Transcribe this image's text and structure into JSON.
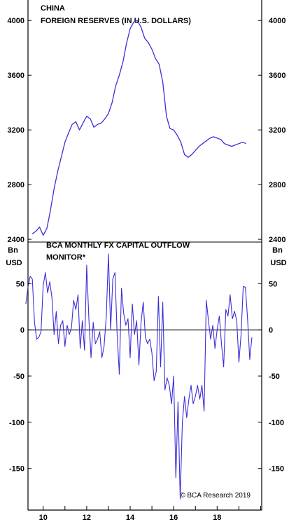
{
  "chart_data": [
    {
      "type": "line",
      "title": "CHINA",
      "subtitle": "FOREIGN RESERVES (IN U.S. DOLLARS)",
      "ylim": [
        2380,
        4150
      ],
      "yticks": [
        "4000",
        "3600",
        "3200",
        "2800",
        "2400"
      ],
      "grid": false,
      "series": [
        {
          "name": "",
          "color": "#3b2fd8",
          "points": [
            [
              2009.5,
              2440
            ],
            [
              2009.67,
              2460
            ],
            [
              2009.83,
              2490
            ],
            [
              2010.0,
              2430
            ],
            [
              2010.17,
              2480
            ],
            [
              2010.33,
              2610
            ],
            [
              2010.5,
              2770
            ],
            [
              2010.67,
              2900
            ],
            [
              2010.83,
              3000
            ],
            [
              2011.0,
              3110
            ],
            [
              2011.17,
              3180
            ],
            [
              2011.33,
              3240
            ],
            [
              2011.5,
              3260
            ],
            [
              2011.67,
              3200
            ],
            [
              2011.83,
              3250
            ],
            [
              2012.0,
              3300
            ],
            [
              2012.17,
              3280
            ],
            [
              2012.33,
              3220
            ],
            [
              2012.5,
              3240
            ],
            [
              2012.67,
              3250
            ],
            [
              2012.83,
              3280
            ],
            [
              2013.0,
              3320
            ],
            [
              2013.17,
              3400
            ],
            [
              2013.33,
              3520
            ],
            [
              2013.5,
              3600
            ],
            [
              2013.67,
              3700
            ],
            [
              2013.83,
              3830
            ],
            [
              2014.0,
              3940
            ],
            [
              2014.17,
              3990
            ],
            [
              2014.33,
              4000
            ],
            [
              2014.5,
              3950
            ],
            [
              2014.67,
              3870
            ],
            [
              2014.83,
              3840
            ],
            [
              2015.0,
              3790
            ],
            [
              2015.17,
              3720
            ],
            [
              2015.33,
              3680
            ],
            [
              2015.5,
              3550
            ],
            [
              2015.67,
              3300
            ],
            [
              2015.83,
              3210
            ],
            [
              2016.0,
              3200
            ],
            [
              2016.17,
              3160
            ],
            [
              2016.33,
              3110
            ],
            [
              2016.5,
              3020
            ],
            [
              2016.67,
              3000
            ],
            [
              2016.83,
              3020
            ],
            [
              2017.0,
              3050
            ],
            [
              2017.17,
              3080
            ],
            [
              2017.33,
              3100
            ],
            [
              2017.5,
              3120
            ],
            [
              2017.67,
              3140
            ],
            [
              2017.83,
              3150
            ],
            [
              2018.0,
              3140
            ],
            [
              2018.17,
              3130
            ],
            [
              2018.33,
              3100
            ],
            [
              2018.5,
              3090
            ],
            [
              2018.67,
              3080
            ],
            [
              2018.83,
              3090
            ],
            [
              2019.0,
              3100
            ],
            [
              2019.17,
              3110
            ],
            [
              2019.33,
              3100
            ]
          ]
        }
      ]
    },
    {
      "type": "line",
      "title": "BCA MONTHLY FX CAPITAL OUTFLOW MONITOR*",
      "ylabel_left": "Bn USD",
      "ylabel_right": "Bn USD",
      "ylim": [
        -195,
        95
      ],
      "yticks": [
        "50",
        "0",
        "-50",
        "-100",
        "-150"
      ],
      "zero_line": true,
      "grid": false,
      "annotation": "© BCA Research 2019",
      "series": [
        {
          "name": "",
          "color": "#3b2fd8",
          "points": [
            [
              2009.2,
              28
            ],
            [
              2009.3,
              46
            ],
            [
              2009.4,
              58
            ],
            [
              2009.5,
              55
            ],
            [
              2009.6,
              8
            ],
            [
              2009.7,
              -10
            ],
            [
              2009.8,
              -8
            ],
            [
              2009.9,
              -2
            ],
            [
              2010.0,
              48
            ],
            [
              2010.1,
              62
            ],
            [
              2010.2,
              40
            ],
            [
              2010.3,
              52
            ],
            [
              2010.4,
              35
            ],
            [
              2010.5,
              -5
            ],
            [
              2010.6,
              20
            ],
            [
              2010.7,
              -15
            ],
            [
              2010.8,
              5
            ],
            [
              2010.9,
              10
            ],
            [
              2011.0,
              -18
            ],
            [
              2011.1,
              5
            ],
            [
              2011.2,
              -5
            ],
            [
              2011.3,
              2
            ],
            [
              2011.4,
              32
            ],
            [
              2011.5,
              22
            ],
            [
              2011.6,
              38
            ],
            [
              2011.7,
              -20
            ],
            [
              2011.8,
              10
            ],
            [
              2011.9,
              -22
            ],
            [
              2012.0,
              70
            ],
            [
              2012.1,
              12
            ],
            [
              2012.2,
              -30
            ],
            [
              2012.3,
              8
            ],
            [
              2012.4,
              -15
            ],
            [
              2012.5,
              -10
            ],
            [
              2012.6,
              -2
            ],
            [
              2012.7,
              -30
            ],
            [
              2012.8,
              -18
            ],
            [
              2012.9,
              15
            ],
            [
              2013.0,
              82
            ],
            [
              2013.1,
              0
            ],
            [
              2013.2,
              55
            ],
            [
              2013.3,
              62
            ],
            [
              2013.4,
              -5
            ],
            [
              2013.5,
              -48
            ],
            [
              2013.6,
              45
            ],
            [
              2013.7,
              18
            ],
            [
              2013.8,
              5
            ],
            [
              2013.9,
              12
            ],
            [
              2014.0,
              -30
            ],
            [
              2014.1,
              28
            ],
            [
              2014.2,
              -5
            ],
            [
              2014.3,
              10
            ],
            [
              2014.4,
              -38
            ],
            [
              2014.5,
              8
            ],
            [
              2014.6,
              30
            ],
            [
              2014.7,
              -8
            ],
            [
              2014.8,
              -15
            ],
            [
              2014.9,
              -10
            ],
            [
              2015.0,
              -25
            ],
            [
              2015.1,
              -55
            ],
            [
              2015.2,
              -45
            ],
            [
              2015.3,
              36
            ],
            [
              2015.4,
              -40
            ],
            [
              2015.5,
              30
            ],
            [
              2015.6,
              -65
            ],
            [
              2015.7,
              -52
            ],
            [
              2015.8,
              -60
            ],
            [
              2015.9,
              -80
            ],
            [
              2016.0,
              -50
            ],
            [
              2016.1,
              -160
            ],
            [
              2016.2,
              -78
            ],
            [
              2016.3,
              -183
            ],
            [
              2016.4,
              -100
            ],
            [
              2016.5,
              -72
            ],
            [
              2016.6,
              -95
            ],
            [
              2016.7,
              -75
            ],
            [
              2016.8,
              -60
            ],
            [
              2016.9,
              -80
            ],
            [
              2017.0,
              -72
            ],
            [
              2017.1,
              -60
            ],
            [
              2017.2,
              -75
            ],
            [
              2017.3,
              -60
            ],
            [
              2017.4,
              -88
            ],
            [
              2017.5,
              32
            ],
            [
              2017.6,
              10
            ],
            [
              2017.7,
              -10
            ],
            [
              2017.8,
              5
            ],
            [
              2017.9,
              -20
            ],
            [
              2018.0,
              0
            ],
            [
              2018.1,
              15
            ],
            [
              2018.2,
              -15
            ],
            [
              2018.3,
              -40
            ],
            [
              2018.4,
              22
            ],
            [
              2018.5,
              15
            ],
            [
              2018.6,
              38
            ],
            [
              2018.7,
              12
            ],
            [
              2018.8,
              20
            ],
            [
              2018.9,
              10
            ],
            [
              2019.0,
              -35
            ],
            [
              2019.1,
              -5
            ],
            [
              2019.2,
              47
            ],
            [
              2019.3,
              46
            ],
            [
              2019.4,
              12
            ],
            [
              2019.5,
              -32
            ],
            [
              2019.6,
              -8
            ]
          ]
        }
      ]
    }
  ],
  "x_axis": {
    "labels": [
      "10",
      "12",
      "14",
      "16",
      "18"
    ],
    "label_years": [
      2010,
      2012,
      2014,
      2016,
      2018
    ],
    "xlim": [
      2009.3,
      2020.05
    ]
  }
}
